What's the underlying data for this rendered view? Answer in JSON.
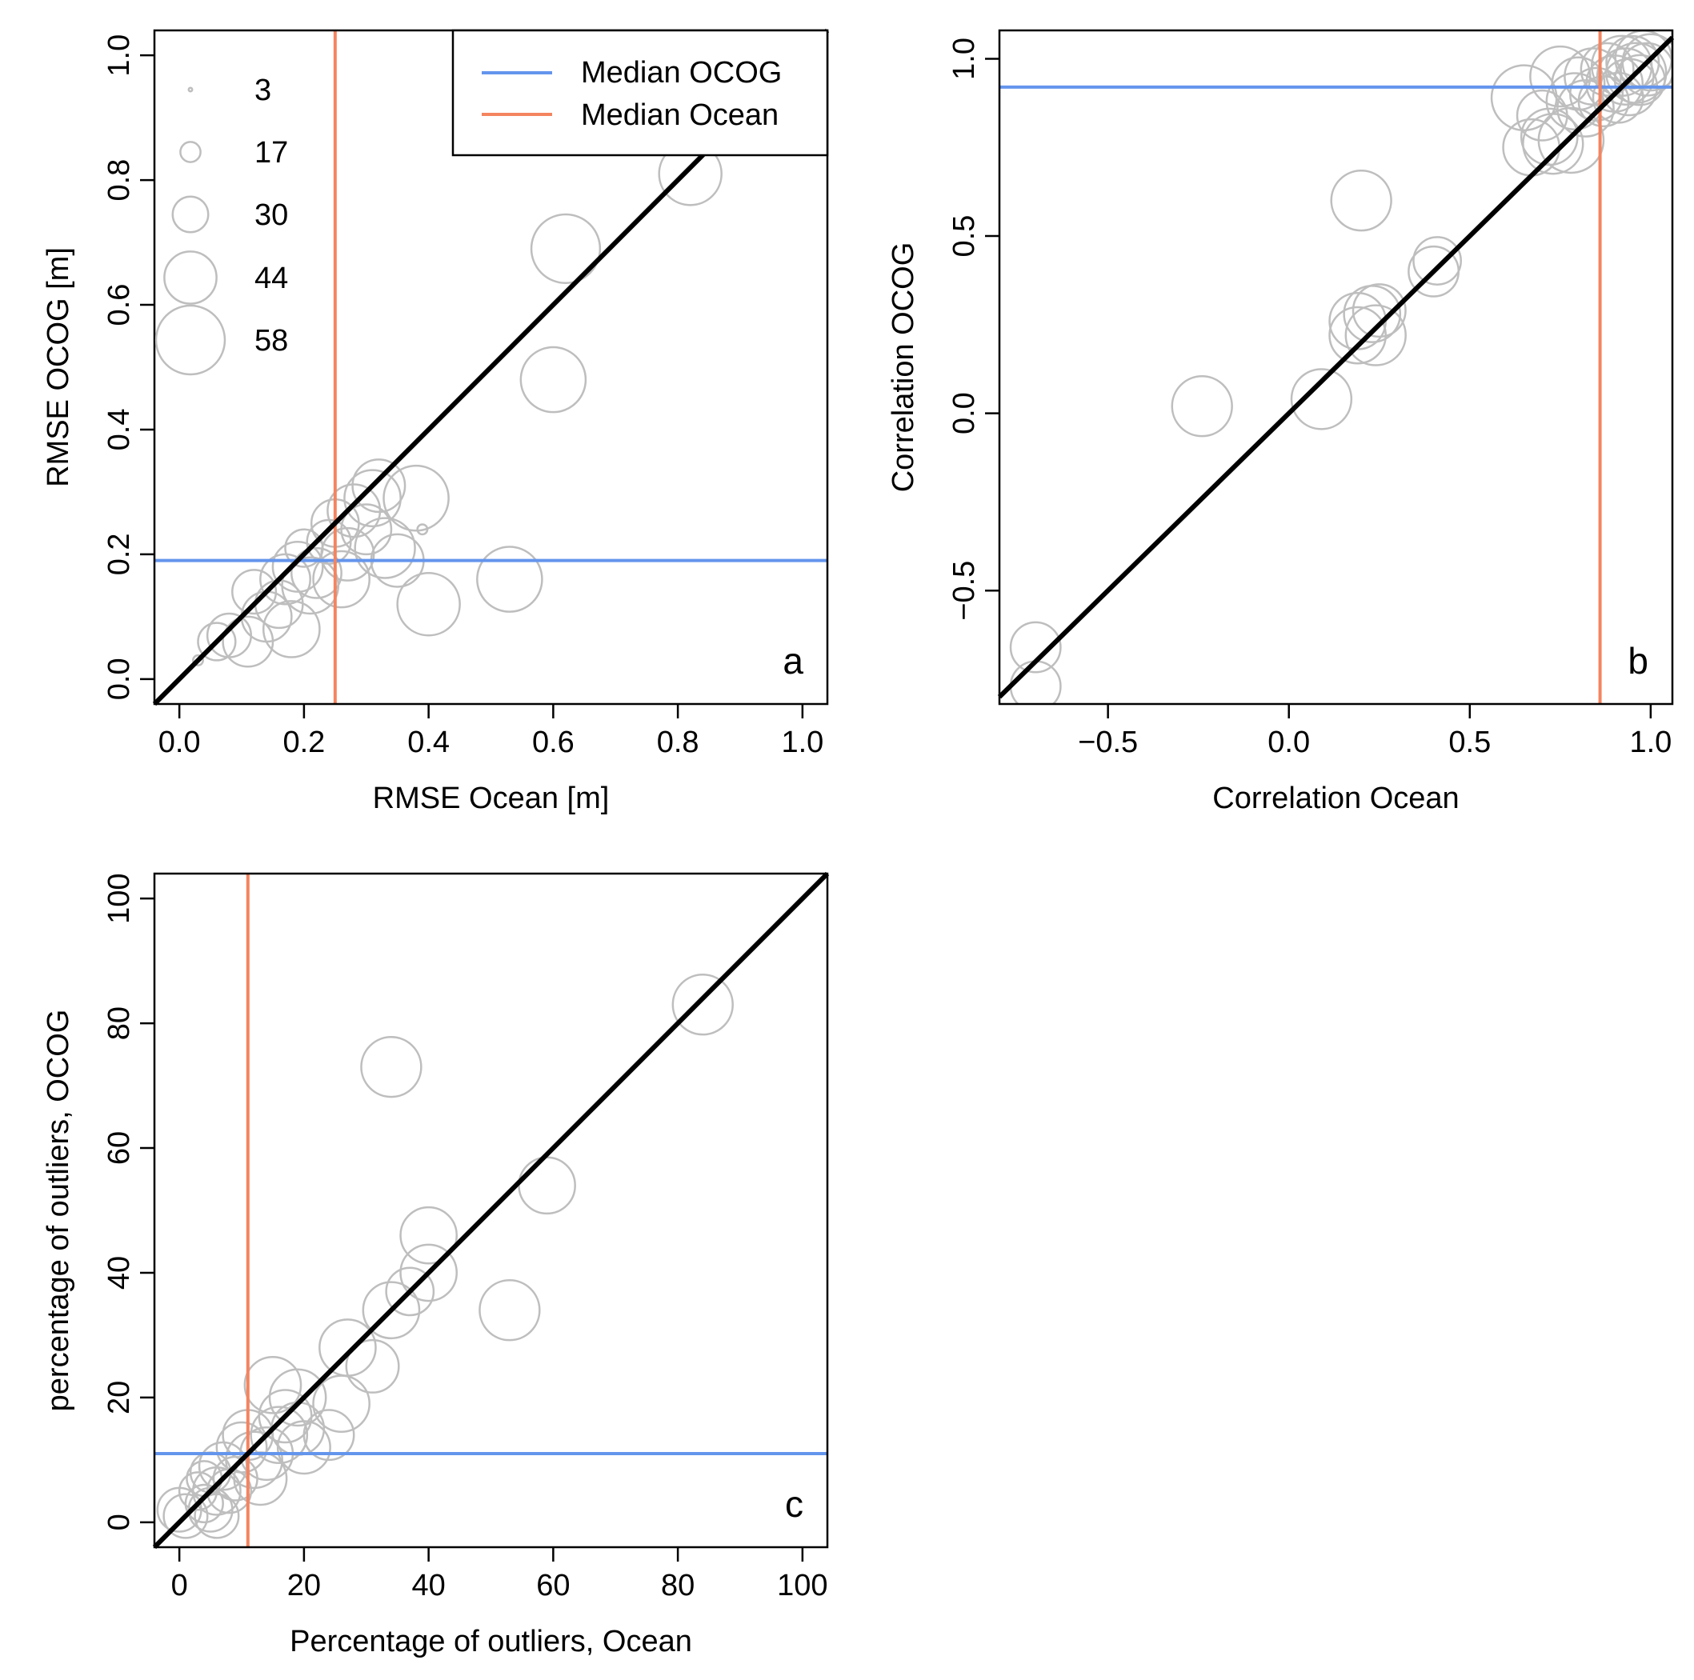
{
  "colors": {
    "median_ocog": "#6495ED",
    "median_ocean": "#F4845F",
    "points": "#BEBEBE",
    "identity_line": "#000000"
  },
  "legend": {
    "lines": [
      {
        "label": "Median OCOG",
        "color": "#6495ED"
      },
      {
        "label": "Median Ocean",
        "color": "#F4845F"
      }
    ],
    "sizes": [
      3,
      17,
      30,
      44,
      58
    ]
  },
  "chart_data": [
    {
      "type": "scatter",
      "panel_label": "a",
      "xlabel": "RMSE Ocean [m]",
      "ylabel": "RMSE  OCOG [m]",
      "xlim": [
        -0.04,
        1.04
      ],
      "ylim": [
        -0.04,
        1.04
      ],
      "xticks": [
        0.0,
        0.2,
        0.4,
        0.6,
        0.8,
        1.0
      ],
      "yticks": [
        0.0,
        0.2,
        0.4,
        0.6,
        0.8,
        1.0
      ],
      "xtick_labels": [
        "0.0",
        "0.2",
        "0.4",
        "0.6",
        "0.8",
        "1.0"
      ],
      "ytick_labels": [
        "0.0",
        "0.2",
        "0.4",
        "0.6",
        "0.8",
        "1.0"
      ],
      "median_ocog": 0.19,
      "median_ocean": 0.25,
      "points": [
        {
          "x": 0.03,
          "y": 0.03,
          "s": 8
        },
        {
          "x": 0.06,
          "y": 0.06,
          "s": 30
        },
        {
          "x": 0.08,
          "y": 0.07,
          "s": 35
        },
        {
          "x": 0.11,
          "y": 0.06,
          "s": 40
        },
        {
          "x": 0.12,
          "y": 0.14,
          "s": 35
        },
        {
          "x": 0.14,
          "y": 0.1,
          "s": 40
        },
        {
          "x": 0.16,
          "y": 0.12,
          "s": 38
        },
        {
          "x": 0.17,
          "y": 0.16,
          "s": 40
        },
        {
          "x": 0.18,
          "y": 0.08,
          "s": 45
        },
        {
          "x": 0.19,
          "y": 0.18,
          "s": 40
        },
        {
          "x": 0.2,
          "y": 0.21,
          "s": 30
        },
        {
          "x": 0.21,
          "y": 0.15,
          "s": 45
        },
        {
          "x": 0.22,
          "y": 0.17,
          "s": 40
        },
        {
          "x": 0.24,
          "y": 0.22,
          "s": 35
        },
        {
          "x": 0.25,
          "y": 0.25,
          "s": 38
        },
        {
          "x": 0.26,
          "y": 0.16,
          "s": 45
        },
        {
          "x": 0.27,
          "y": 0.2,
          "s": 42
        },
        {
          "x": 0.28,
          "y": 0.27,
          "s": 42
        },
        {
          "x": 0.3,
          "y": 0.24,
          "s": 40
        },
        {
          "x": 0.31,
          "y": 0.29,
          "s": 45
        },
        {
          "x": 0.32,
          "y": 0.31,
          "s": 42
        },
        {
          "x": 0.33,
          "y": 0.21,
          "s": 48
        },
        {
          "x": 0.35,
          "y": 0.19,
          "s": 42
        },
        {
          "x": 0.38,
          "y": 0.29,
          "s": 52
        },
        {
          "x": 0.39,
          "y": 0.24,
          "s": 8
        },
        {
          "x": 0.4,
          "y": 0.12,
          "s": 50
        },
        {
          "x": 0.53,
          "y": 0.16,
          "s": 52
        },
        {
          "x": 0.6,
          "y": 0.48,
          "s": 52
        },
        {
          "x": 0.62,
          "y": 0.69,
          "s": 55
        },
        {
          "x": 0.82,
          "y": 0.81,
          "s": 50
        }
      ]
    },
    {
      "type": "scatter",
      "panel_label": "b",
      "xlabel": "Correlation Ocean",
      "ylabel": "Correlation OCOG",
      "xlim": [
        -0.8,
        1.06
      ],
      "ylim": [
        -0.82,
        1.08
      ],
      "xticks": [
        -0.5,
        0.0,
        0.5,
        1.0
      ],
      "yticks": [
        -0.5,
        0.0,
        0.5,
        1.0
      ],
      "xtick_labels": [
        "−0.5",
        "0.0",
        "0.5",
        "1.0"
      ],
      "ytick_labels": [
        "−0.5",
        "0.0",
        "0.5",
        "1.0"
      ],
      "median_ocog": 0.92,
      "median_ocean": 0.86,
      "points": [
        {
          "x": -0.7,
          "y": -0.66,
          "s": 40
        },
        {
          "x": -0.7,
          "y": -0.77,
          "s": 40
        },
        {
          "x": -0.24,
          "y": 0.02,
          "s": 48
        },
        {
          "x": 0.09,
          "y": 0.04,
          "s": 48
        },
        {
          "x": 0.19,
          "y": 0.26,
          "s": 45
        },
        {
          "x": 0.19,
          "y": 0.22,
          "s": 45
        },
        {
          "x": 0.2,
          "y": 0.6,
          "s": 48
        },
        {
          "x": 0.23,
          "y": 0.28,
          "s": 45
        },
        {
          "x": 0.24,
          "y": 0.22,
          "s": 48
        },
        {
          "x": 0.25,
          "y": 0.29,
          "s": 42
        },
        {
          "x": 0.4,
          "y": 0.4,
          "s": 40
        },
        {
          "x": 0.41,
          "y": 0.43,
          "s": 38
        },
        {
          "x": 0.65,
          "y": 0.89,
          "s": 52
        },
        {
          "x": 0.67,
          "y": 0.75,
          "s": 45
        },
        {
          "x": 0.7,
          "y": 0.84,
          "s": 40
        },
        {
          "x": 0.72,
          "y": 0.78,
          "s": 45
        },
        {
          "x": 0.73,
          "y": 0.76,
          "s": 48
        },
        {
          "x": 0.75,
          "y": 0.95,
          "s": 48
        },
        {
          "x": 0.78,
          "y": 0.77,
          "s": 52
        },
        {
          "x": 0.79,
          "y": 0.88,
          "s": 45
        },
        {
          "x": 0.8,
          "y": 0.93,
          "s": 42
        },
        {
          "x": 0.82,
          "y": 0.86,
          "s": 45
        },
        {
          "x": 0.84,
          "y": 0.95,
          "s": 45
        },
        {
          "x": 0.85,
          "y": 0.9,
          "s": 42
        },
        {
          "x": 0.87,
          "y": 0.88,
          "s": 40
        },
        {
          "x": 0.88,
          "y": 0.97,
          "s": 42
        },
        {
          "x": 0.9,
          "y": 0.93,
          "s": 45
        },
        {
          "x": 0.91,
          "y": 0.89,
          "s": 40
        },
        {
          "x": 0.92,
          "y": 0.98,
          "s": 48
        },
        {
          "x": 0.93,
          "y": 0.95,
          "s": 45
        },
        {
          "x": 0.94,
          "y": 0.92,
          "s": 45
        },
        {
          "x": 0.95,
          "y": 0.99,
          "s": 42
        },
        {
          "x": 0.96,
          "y": 0.96,
          "s": 48
        },
        {
          "x": 0.97,
          "y": 0.94,
          "s": 40
        },
        {
          "x": 0.98,
          "y": 1.0,
          "s": 45
        },
        {
          "x": 0.99,
          "y": 0.97,
          "s": 42
        },
        {
          "x": 1.0,
          "y": 0.99,
          "s": 45
        }
      ]
    },
    {
      "type": "scatter",
      "panel_label": "c",
      "xlabel": "Percentage of outliers, Ocean",
      "ylabel": "percentage of outliers, OCOG",
      "xlim": [
        -4,
        104
      ],
      "ylim": [
        -4,
        104
      ],
      "xticks": [
        0,
        20,
        40,
        60,
        80,
        100
      ],
      "yticks": [
        0,
        20,
        40,
        60,
        80,
        100
      ],
      "xtick_labels": [
        "0",
        "20",
        "40",
        "60",
        "80",
        "100"
      ],
      "ytick_labels": [
        "0",
        "20",
        "40",
        "60",
        "80",
        "100"
      ],
      "median_ocog": 11,
      "median_ocean": 11,
      "points": [
        {
          "x": 0,
          "y": 2,
          "s": 35
        },
        {
          "x": 1,
          "y": 1,
          "s": 35
        },
        {
          "x": 3,
          "y": 5,
          "s": 30
        },
        {
          "x": 4,
          "y": 7,
          "s": 28
        },
        {
          "x": 4,
          "y": 3,
          "s": 30
        },
        {
          "x": 5,
          "y": 2,
          "s": 35
        },
        {
          "x": 5,
          "y": 8,
          "s": 32
        },
        {
          "x": 6,
          "y": 5,
          "s": 38
        },
        {
          "x": 6,
          "y": 1,
          "s": 35
        },
        {
          "x": 7,
          "y": 9,
          "s": 38
        },
        {
          "x": 8,
          "y": 5,
          "s": 35
        },
        {
          "x": 9,
          "y": 7,
          "s": 35
        },
        {
          "x": 10,
          "y": 12,
          "s": 40
        },
        {
          "x": 11,
          "y": 14,
          "s": 40
        },
        {
          "x": 12,
          "y": 10,
          "s": 45
        },
        {
          "x": 13,
          "y": 7,
          "s": 42
        },
        {
          "x": 14,
          "y": 11,
          "s": 42
        },
        {
          "x": 15,
          "y": 22,
          "s": 45
        },
        {
          "x": 16,
          "y": 14,
          "s": 45
        },
        {
          "x": 17,
          "y": 17,
          "s": 42
        },
        {
          "x": 19,
          "y": 15,
          "s": 42
        },
        {
          "x": 19,
          "y": 20,
          "s": 45
        },
        {
          "x": 20,
          "y": 12,
          "s": 42
        },
        {
          "x": 24,
          "y": 14,
          "s": 40
        },
        {
          "x": 26,
          "y": 19,
          "s": 45
        },
        {
          "x": 27,
          "y": 28,
          "s": 45
        },
        {
          "x": 31,
          "y": 25,
          "s": 42
        },
        {
          "x": 34,
          "y": 34,
          "s": 45
        },
        {
          "x": 34,
          "y": 73,
          "s": 48
        },
        {
          "x": 37,
          "y": 37,
          "s": 38
        },
        {
          "x": 40,
          "y": 40,
          "s": 45
        },
        {
          "x": 40,
          "y": 46,
          "s": 45
        },
        {
          "x": 53,
          "y": 34,
          "s": 48
        },
        {
          "x": 59,
          "y": 54,
          "s": 45
        },
        {
          "x": 84,
          "y": 83,
          "s": 48
        }
      ]
    }
  ]
}
